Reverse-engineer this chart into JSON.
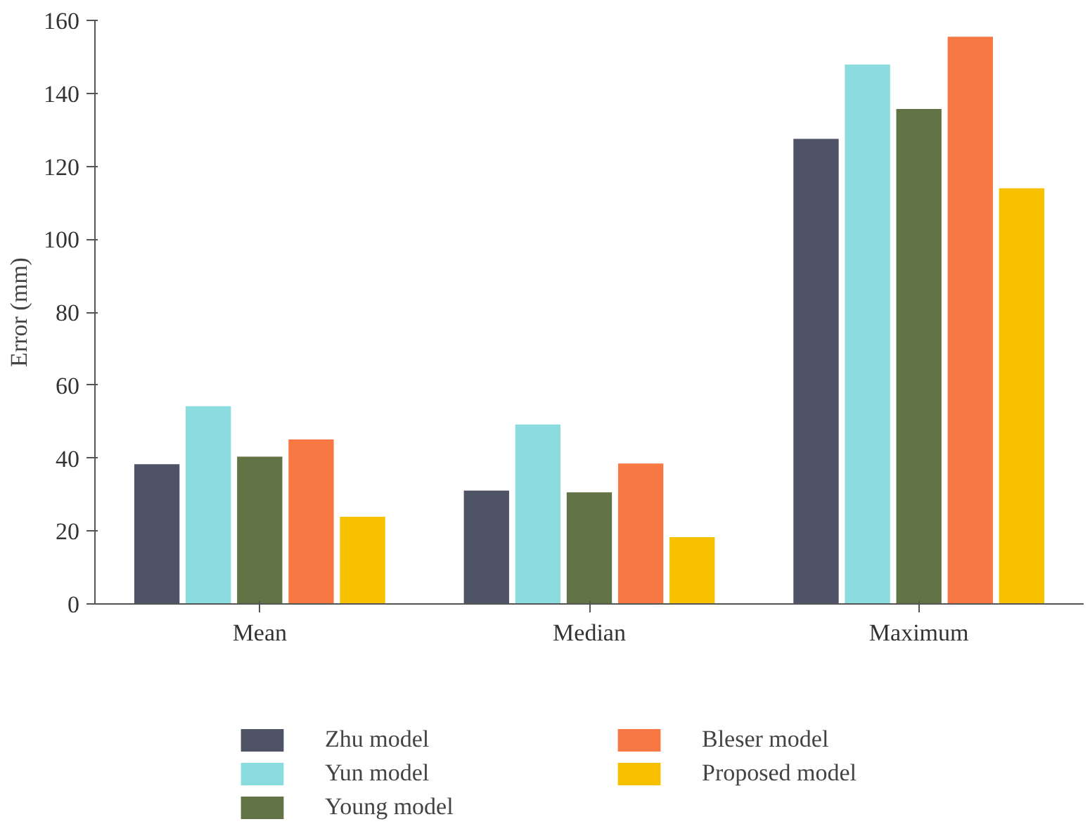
{
  "chart_data": {
    "type": "bar",
    "ylabel": "Error (mm)",
    "categories": [
      "Mean",
      "Median",
      "Maximum"
    ],
    "series": [
      {
        "name": "Zhu model",
        "color": "#4e5366",
        "values": [
          38.3,
          31.1,
          127.5
        ]
      },
      {
        "name": "Yun model",
        "color": "#8adcde",
        "values": [
          54.2,
          49.2,
          147.9
        ]
      },
      {
        "name": "Young model",
        "color": "#627446",
        "values": [
          40.4,
          30.6,
          135.7
        ]
      },
      {
        "name": "Bleser model",
        "color": "#f77842",
        "values": [
          45.1,
          38.5,
          155.5
        ]
      },
      {
        "name": "Proposed model",
        "color": "#f7c100",
        "values": [
          23.9,
          18.3,
          114
        ]
      }
    ],
    "ylim": [
      0,
      160
    ],
    "yticks": [
      0,
      20,
      40,
      60,
      80,
      100,
      120,
      140,
      160
    ],
    "grid": false,
    "legend": "bottom"
  }
}
